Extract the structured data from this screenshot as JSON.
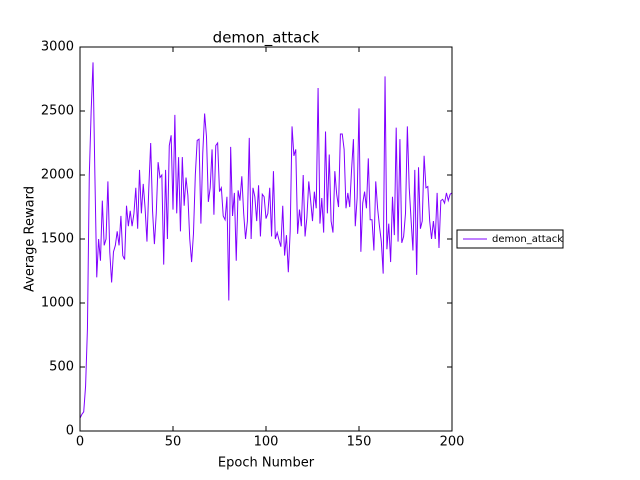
{
  "chart_data": {
    "type": "line",
    "title": "demon_attack",
    "x_label": "Epoch Number",
    "y_label": "Average Reward",
    "x": [
      0,
      1,
      2,
      3,
      4,
      5,
      6,
      7,
      8,
      9,
      10,
      11,
      12,
      13,
      14,
      15,
      16,
      17,
      18,
      19,
      20,
      21,
      22,
      23,
      24,
      25,
      26,
      27,
      28,
      29,
      30,
      31,
      32,
      33,
      34,
      35,
      36,
      37,
      38,
      39,
      40,
      41,
      42,
      43,
      44,
      45,
      46,
      47,
      48,
      49,
      50,
      51,
      52,
      53,
      54,
      55,
      56,
      57,
      58,
      59,
      60,
      61,
      62,
      63,
      64,
      65,
      66,
      67,
      68,
      69,
      70,
      71,
      72,
      73,
      74,
      75,
      76,
      77,
      78,
      79,
      80,
      81,
      82,
      83,
      84,
      85,
      86,
      87,
      88,
      89,
      90,
      91,
      92,
      93,
      94,
      95,
      96,
      97,
      98,
      99,
      100,
      101,
      102,
      103,
      104,
      105,
      106,
      107,
      108,
      109,
      110,
      111,
      112,
      113,
      114,
      115,
      116,
      117,
      118,
      119,
      120,
      121,
      122,
      123,
      124,
      125,
      126,
      127,
      128,
      129,
      130,
      131,
      132,
      133,
      134,
      135,
      136,
      137,
      138,
      139,
      140,
      141,
      142,
      143,
      144,
      145,
      146,
      147,
      148,
      149,
      150,
      151,
      152,
      153,
      154,
      155,
      156,
      157,
      158,
      159,
      160,
      161,
      162,
      163,
      164,
      165,
      166,
      167,
      168,
      169,
      170,
      171,
      172,
      173,
      174,
      175,
      176,
      177,
      178,
      179,
      180,
      181,
      182,
      183,
      184,
      185,
      186,
      187,
      188,
      189,
      190,
      191,
      192,
      193,
      194,
      195,
      196,
      197,
      198,
      199,
      200
    ],
    "series": [
      {
        "name": "demon_attack",
        "color": "#8000ff",
        "values": [
          100,
          130,
          150,
          350,
          800,
          2000,
          2500,
          2880,
          2000,
          1200,
          1500,
          1330,
          1800,
          1450,
          1500,
          1950,
          1400,
          1160,
          1400,
          1450,
          1560,
          1450,
          1680,
          1370,
          1340,
          1760,
          1600,
          1720,
          1600,
          1700,
          1900,
          1580,
          2040,
          1700,
          1930,
          1740,
          1480,
          1900,
          2250,
          1720,
          1460,
          1700,
          2100,
          1980,
          2000,
          1300,
          2040,
          1500,
          2230,
          2310,
          1730,
          2470,
          1700,
          2140,
          1560,
          2140,
          1760,
          1980,
          1840,
          1500,
          1320,
          1540,
          2000,
          2270,
          2280,
          1620,
          2170,
          2480,
          2300,
          1790,
          1900,
          2200,
          1690,
          2230,
          2250,
          1870,
          1900,
          1680,
          1650,
          1830,
          1020,
          2220,
          1680,
          1860,
          1330,
          1880,
          1800,
          1990,
          1700,
          1500,
          1640,
          2290,
          1500,
          1900,
          1830,
          1640,
          1920,
          1520,
          1850,
          1830,
          1660,
          1700,
          1900,
          1520,
          2030,
          1500,
          1550,
          1490,
          1440,
          1760,
          1370,
          1530,
          1240,
          1560,
          2380,
          2150,
          2200,
          1540,
          1730,
          1600,
          2000,
          1520,
          1670,
          1950,
          1800,
          1640,
          1870,
          1740,
          2680,
          1620,
          1820,
          1550,
          2340,
          1700,
          2160,
          1640,
          1550,
          2030,
          1850,
          1750,
          2320,
          2320,
          2200,
          1740,
          1860,
          1750,
          2040,
          2280,
          1600,
          1820,
          2520,
          1400,
          1780,
          1870,
          1740,
          2130,
          1650,
          1650,
          1410,
          1950,
          1740,
          1600,
          1480,
          1230,
          2770,
          1420,
          1620,
          1320,
          1830,
          1530,
          2370,
          1480,
          2280,
          1470,
          1520,
          1700,
          2380,
          1900,
          1650,
          1410,
          2040,
          1220,
          2060,
          1580,
          1640,
          2150,
          1900,
          1910,
          1640,
          1500,
          1640,
          1500,
          1860,
          1430,
          1800,
          1810,
          1780,
          1860,
          1800,
          1850,
          1860
        ]
      }
    ],
    "xlim": [
      0,
      200
    ],
    "xticks": [
      0,
      50,
      100,
      150,
      200
    ],
    "ylim": [
      0,
      3000
    ],
    "yticks": [
      0,
      500,
      1000,
      1500,
      2000,
      2500,
      3000
    ],
    "legend": "right"
  }
}
